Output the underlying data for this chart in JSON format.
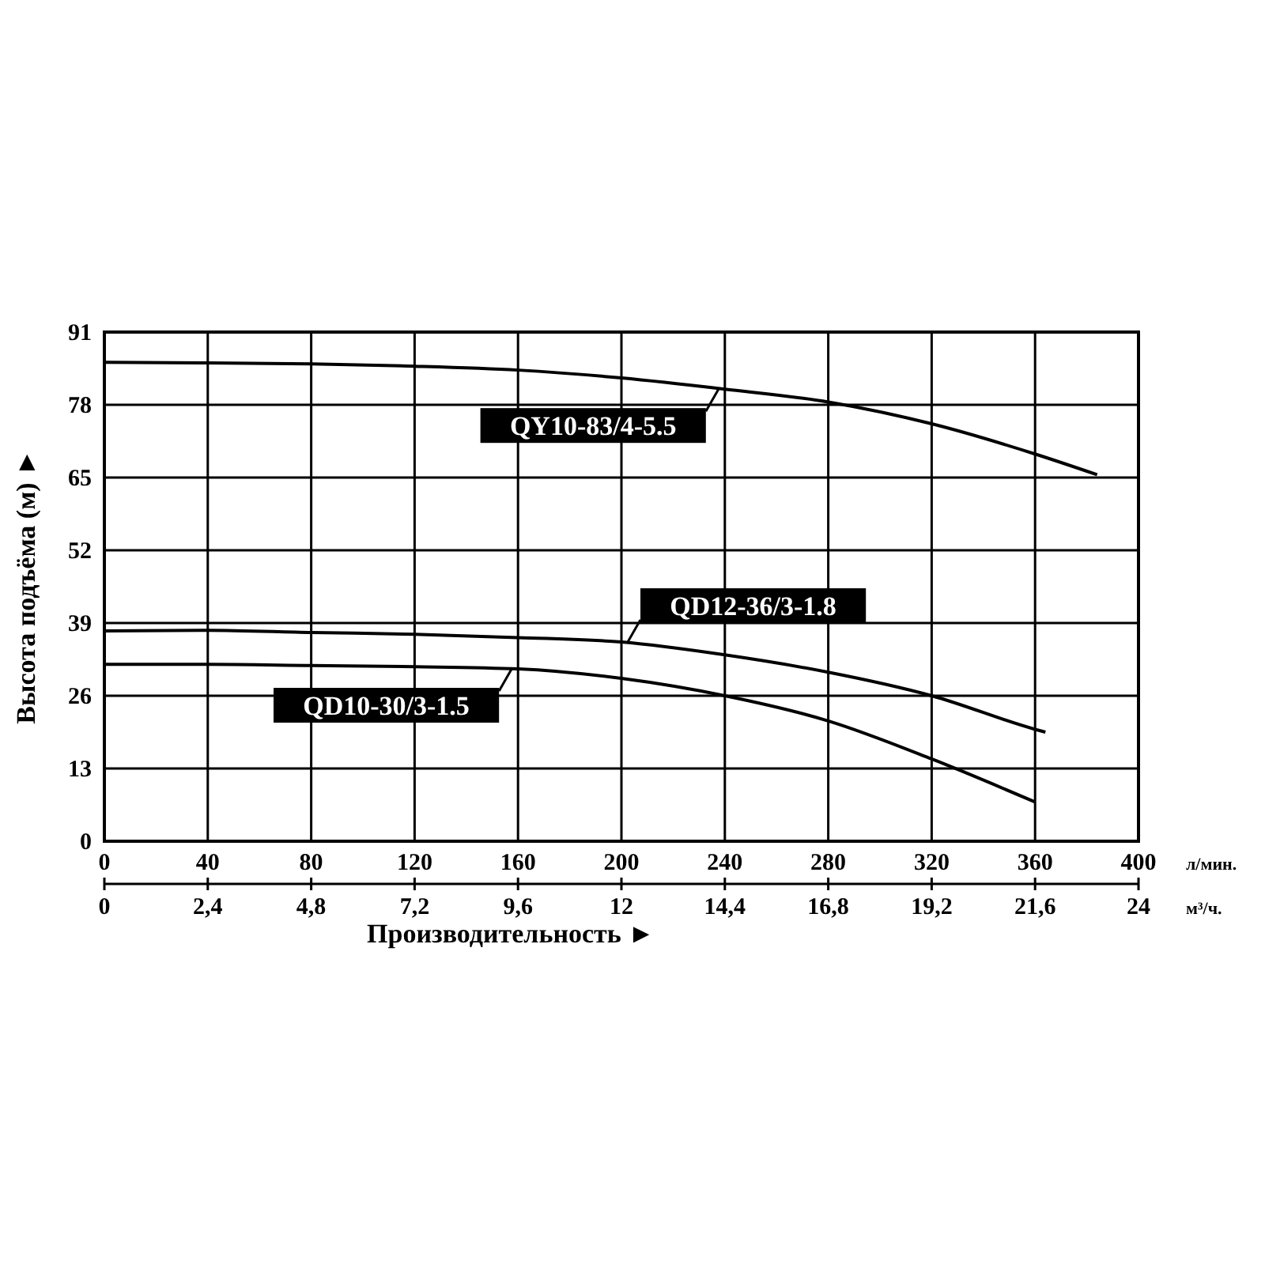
{
  "chart_data": {
    "type": "line",
    "xlabel": "Производительность ►",
    "ylabel": "Высота подъёма (м) ►",
    "xlim": [
      0,
      400
    ],
    "xticks": [
      0,
      40,
      80,
      120,
      160,
      200,
      240,
      280,
      320,
      360,
      400
    ],
    "x2lim": [
      0,
      24
    ],
    "x2ticks": [
      0,
      {
        "value": 2.4,
        "label": "2,4"
      },
      {
        "value": 4.8,
        "label": "4,8"
      },
      {
        "value": 7.2,
        "label": "7,2"
      },
      {
        "value": 9.6,
        "label": "9,6"
      },
      12,
      {
        "value": 14.4,
        "label": "14,4"
      },
      {
        "value": 16.8,
        "label": "16,8"
      },
      {
        "value": 19.2,
        "label": "19,2"
      },
      {
        "value": 21.6,
        "label": "21,6"
      },
      24
    ],
    "ylim": [
      0,
      91
    ],
    "yticks": [
      0,
      13,
      26,
      39,
      52,
      65,
      78,
      91
    ],
    "grid": true,
    "marker": "none",
    "line_style": "solid",
    "annotations": [
      "л/мин.",
      "м³/ч."
    ],
    "series": [
      {
        "name": "QY10-83/4-5.5",
        "color": "#000000",
        "x": [
          0,
          40,
          80,
          120,
          160,
          200,
          240,
          280,
          320,
          360,
          384
        ],
        "values": [
          85.6,
          85.5,
          85.3,
          84.9,
          84.2,
          82.8,
          80.8,
          78.5,
          74.6,
          69.2,
          65.5
        ]
      },
      {
        "name": "QD12-36/3-1.8",
        "color": "#000000",
        "x": [
          0,
          40,
          80,
          120,
          160,
          200,
          240,
          280,
          320,
          360,
          364
        ],
        "values": [
          37.6,
          37.7,
          37.3,
          37,
          36.4,
          35.6,
          33.3,
          30.2,
          26,
          20,
          19.5
        ]
      },
      {
        "name": "QD10-30/3-1.5",
        "color": "#000000",
        "x": [
          0,
          40,
          80,
          120,
          160,
          200,
          240,
          280,
          320,
          360
        ],
        "values": [
          31.6,
          31.6,
          31.4,
          31.2,
          30.8,
          29.1,
          26,
          21.5,
          14.7,
          7
        ]
      }
    ]
  }
}
